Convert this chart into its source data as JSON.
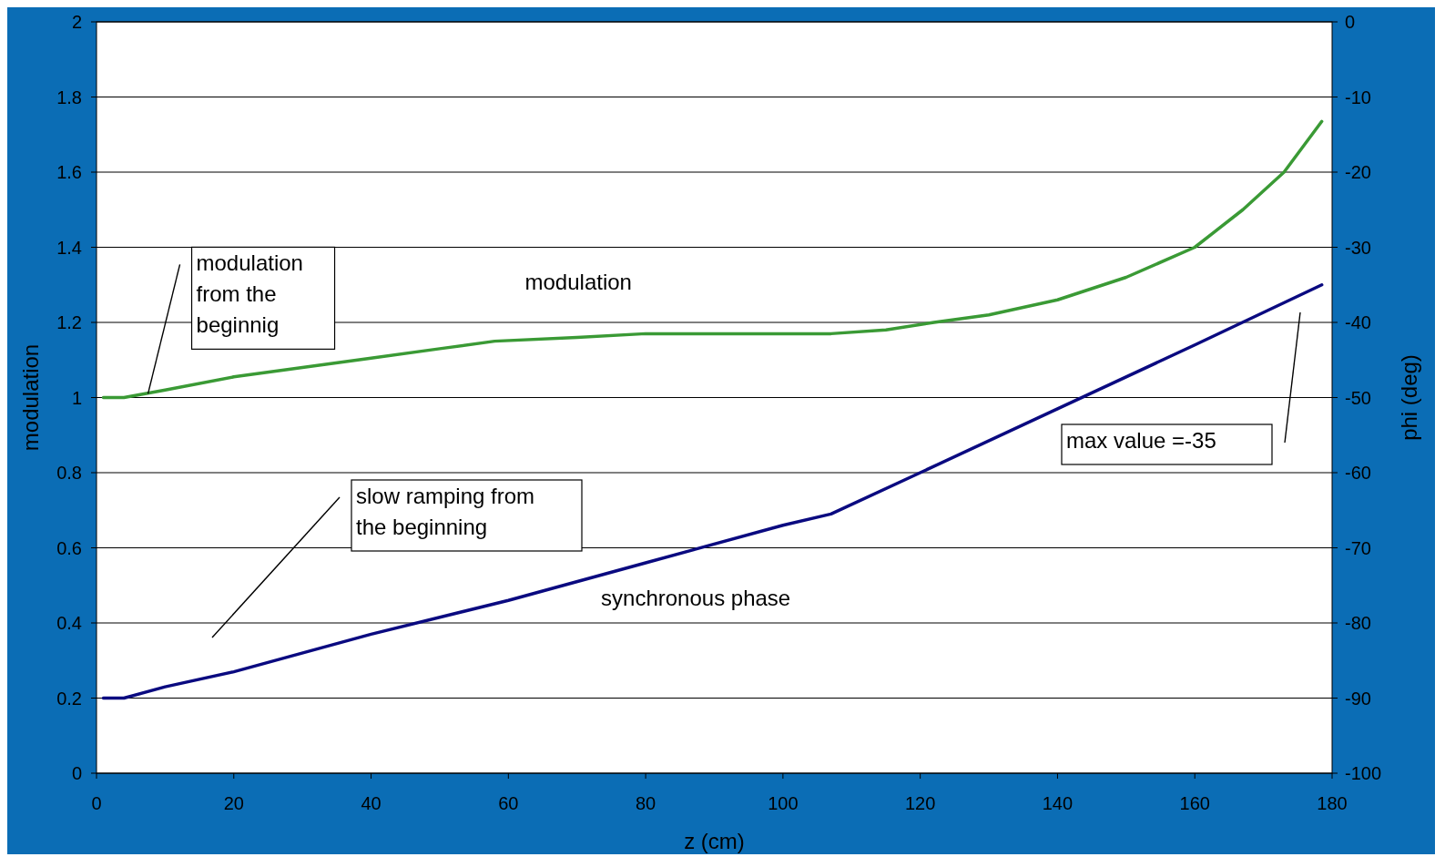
{
  "chart_data": {
    "type": "line",
    "xlabel": "z (cm)",
    "ylabel": "modulation",
    "y2label": "phi (deg)",
    "xlim": [
      0,
      180
    ],
    "xticks": [
      0,
      20,
      40,
      60,
      80,
      100,
      120,
      140,
      160,
      180
    ],
    "ylim": [
      0,
      2
    ],
    "yticks": [
      0,
      0.2,
      0.4,
      0.6,
      0.8,
      1,
      1.2,
      1.4,
      1.6,
      1.8,
      2
    ],
    "y2lim": [
      -100,
      0
    ],
    "y2ticks": [
      -100,
      -90,
      -80,
      -70,
      -60,
      -50,
      -40,
      -30,
      -20,
      -10,
      0
    ],
    "grid": "y",
    "series": [
      {
        "name": "modulation",
        "color": "#3a9a35",
        "x": [
          1,
          4,
          10,
          20,
          30,
          40,
          50,
          58,
          70,
          80,
          90,
          107,
          115,
          122,
          130,
          140,
          150,
          160,
          167,
          173,
          178.5
        ],
        "values": [
          1.0,
          1.0,
          1.02,
          1.055,
          1.08,
          1.105,
          1.13,
          1.15,
          1.16,
          1.17,
          1.17,
          1.17,
          1.18,
          1.2,
          1.22,
          1.26,
          1.32,
          1.4,
          1.5,
          1.6,
          1.735
        ]
      },
      {
        "name": "synchronous phase",
        "color": "#0a0a80",
        "axis": "y2",
        "x": [
          1,
          4,
          10,
          20,
          40,
          60,
          80,
          100,
          107,
          120,
          140,
          160,
          178.5
        ],
        "values": [
          -90,
          -90,
          -88.5,
          -86.5,
          -81.5,
          -77,
          -72,
          -67,
          -65.5,
          -60,
          -51.5,
          -43,
          -35
        ]
      }
    ],
    "annotations": [
      {
        "text": "modulation from the beginnig",
        "x": 7.5,
        "y": 1.01
      },
      "slow ramping from the beginning",
      "max value =-35"
    ]
  }
}
